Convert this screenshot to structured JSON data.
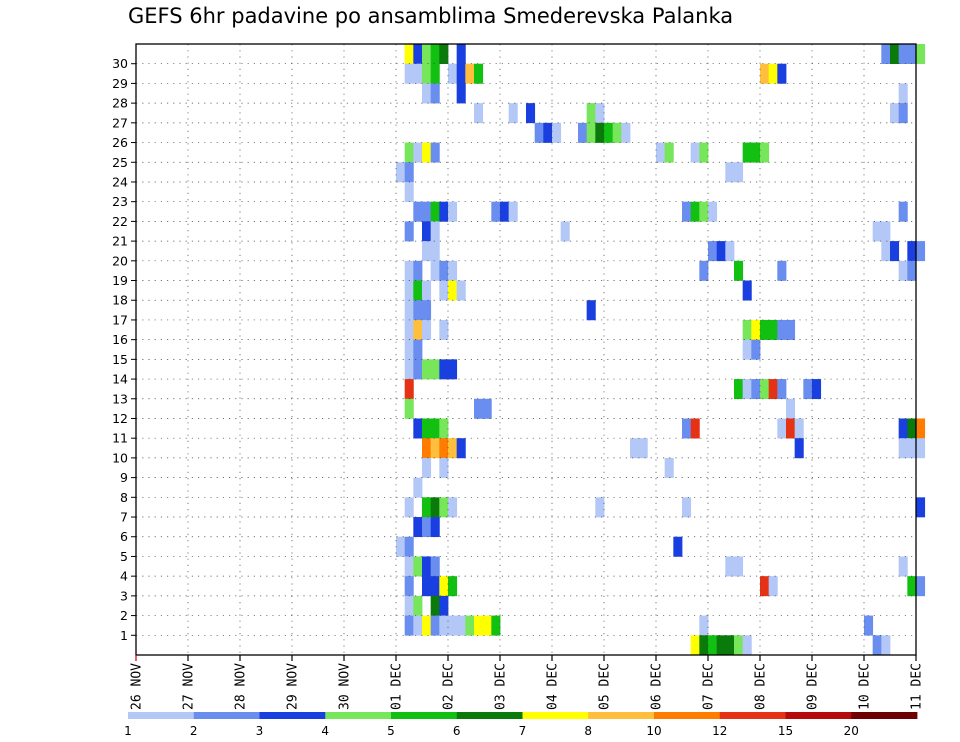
{
  "chart_data": {
    "type": "heatmap",
    "title": "GEFS 6hr padavine po ansamblima Smederevska Palanka",
    "x_ticks": [
      "26 NOV",
      "27 NOV",
      "28 NOV",
      "29 NOV",
      "30 NOV",
      "01 DEC",
      "02 DEC",
      "03 DEC",
      "04 DEC",
      "05 DEC",
      "06 DEC",
      "07 DEC",
      "08 DEC",
      "09 DEC",
      "10 DEC",
      "11 DEC"
    ],
    "y_ticks": [
      "1",
      "2",
      "3",
      "4",
      "5",
      "6",
      "7",
      "8",
      "9",
      "10",
      "11",
      "12",
      "13",
      "14",
      "15",
      "16",
      "17",
      "18",
      "19",
      "20",
      "21",
      "22",
      "23",
      "24",
      "25",
      "26",
      "27",
      "28",
      "29",
      "30"
    ],
    "grid": true,
    "legend": {
      "placement": "bottom",
      "labels": [
        "1",
        "2",
        "3",
        "4",
        "5",
        "6",
        "7",
        "8",
        "10",
        "12",
        "15",
        "20"
      ],
      "colors": [
        "#b4c8f8",
        "#6a8ef0",
        "#1a3fe0",
        "#78e65a",
        "#12c012",
        "#0a7a0a",
        "#ffff00",
        "#ffbe3c",
        "#ff7c00",
        "#e63214",
        "#b40a0a",
        "#6e0000"
      ]
    },
    "cells": [
      {
        "m": 30,
        "c": [
          [
            31,
            6
          ],
          [
            32,
            2
          ],
          [
            33,
            3
          ],
          [
            34,
            4
          ],
          [
            35,
            5
          ],
          [
            37,
            2
          ],
          [
            86,
            1
          ],
          [
            87,
            5
          ],
          [
            88,
            1
          ],
          [
            89,
            1
          ],
          [
            90,
            3
          ]
        ]
      },
      {
        "m": 29,
        "c": [
          [
            31,
            0
          ],
          [
            32,
            0
          ],
          [
            33,
            3
          ],
          [
            34,
            4
          ],
          [
            36,
            0
          ],
          [
            37,
            2
          ],
          [
            38,
            7
          ],
          [
            39,
            4
          ],
          [
            72,
            7
          ],
          [
            73,
            6
          ],
          [
            74,
            2
          ]
        ]
      },
      {
        "m": 28,
        "c": [
          [
            33,
            0
          ],
          [
            34,
            1
          ],
          [
            37,
            2
          ],
          [
            88,
            0
          ]
        ]
      },
      {
        "m": 27,
        "c": [
          [
            39,
            0
          ],
          [
            43,
            0
          ],
          [
            45,
            2
          ],
          [
            52,
            3
          ],
          [
            53,
            0
          ],
          [
            87,
            0
          ],
          [
            88,
            1
          ]
        ]
      },
      {
        "m": 26,
        "c": [
          [
            46,
            1
          ],
          [
            47,
            2
          ],
          [
            48,
            0
          ],
          [
            51,
            1
          ],
          [
            52,
            3
          ],
          [
            53,
            5
          ],
          [
            54,
            4
          ],
          [
            55,
            3
          ],
          [
            56,
            0
          ]
        ]
      },
      {
        "m": 25,
        "c": [
          [
            31,
            3
          ],
          [
            32,
            0
          ],
          [
            33,
            6
          ],
          [
            34,
            1
          ],
          [
            60,
            0
          ],
          [
            61,
            3
          ],
          [
            64,
            0
          ],
          [
            65,
            3
          ],
          [
            70,
            4
          ],
          [
            71,
            4
          ],
          [
            72,
            3
          ]
        ]
      },
      {
        "m": 24,
        "c": [
          [
            30,
            0
          ],
          [
            31,
            1
          ],
          [
            68,
            0
          ],
          [
            69,
            0
          ]
        ]
      },
      {
        "m": 23,
        "c": [
          [
            31,
            0
          ]
        ]
      },
      {
        "m": 22,
        "c": [
          [
            32,
            1
          ],
          [
            33,
            1
          ],
          [
            34,
            4
          ],
          [
            35,
            2
          ],
          [
            36,
            0
          ],
          [
            41,
            1
          ],
          [
            42,
            2
          ],
          [
            43,
            0
          ],
          [
            63,
            1
          ],
          [
            64,
            4
          ],
          [
            65,
            3
          ],
          [
            66,
            0
          ],
          [
            88,
            1
          ]
        ]
      },
      {
        "m": 21,
        "c": [
          [
            31,
            1
          ],
          [
            33,
            2
          ],
          [
            34,
            0
          ],
          [
            49,
            0
          ],
          [
            85,
            0
          ],
          [
            86,
            0
          ]
        ]
      },
      {
        "m": 20,
        "c": [
          [
            33,
            0
          ],
          [
            34,
            0
          ],
          [
            66,
            1
          ],
          [
            67,
            2
          ],
          [
            68,
            0
          ],
          [
            86,
            0
          ],
          [
            87,
            2
          ],
          [
            89,
            2
          ],
          [
            90,
            1
          ]
        ]
      },
      {
        "m": 19,
        "c": [
          [
            31,
            0
          ],
          [
            32,
            1
          ],
          [
            34,
            0
          ],
          [
            35,
            1
          ],
          [
            36,
            0
          ],
          [
            65,
            1
          ],
          [
            69,
            4
          ],
          [
            74,
            1
          ],
          [
            88,
            0
          ],
          [
            89,
            1
          ]
        ]
      },
      {
        "m": 18,
        "c": [
          [
            31,
            0
          ],
          [
            32,
            4
          ],
          [
            33,
            0
          ],
          [
            35,
            0
          ],
          [
            36,
            6
          ],
          [
            37,
            0
          ],
          [
            70,
            2
          ]
        ]
      },
      {
        "m": 17,
        "c": [
          [
            31,
            0
          ],
          [
            32,
            1
          ],
          [
            33,
            1
          ],
          [
            52,
            2
          ]
        ]
      },
      {
        "m": 16,
        "c": [
          [
            31,
            0
          ],
          [
            32,
            7
          ],
          [
            33,
            0
          ],
          [
            35,
            0
          ],
          [
            70,
            3
          ],
          [
            71,
            6
          ],
          [
            72,
            4
          ],
          [
            73,
            4
          ],
          [
            74,
            1
          ],
          [
            75,
            1
          ]
        ]
      },
      {
        "m": 15,
        "c": [
          [
            31,
            0
          ],
          [
            32,
            1
          ],
          [
            70,
            0
          ],
          [
            71,
            1
          ]
        ]
      },
      {
        "m": 14,
        "c": [
          [
            31,
            0
          ],
          [
            32,
            1
          ],
          [
            33,
            3
          ],
          [
            34,
            3
          ],
          [
            35,
            2
          ],
          [
            36,
            2
          ]
        ]
      },
      {
        "m": 13,
        "c": [
          [
            31,
            9
          ],
          [
            69,
            4
          ],
          [
            70,
            0
          ],
          [
            71,
            1
          ],
          [
            72,
            3
          ],
          [
            73,
            9
          ],
          [
            74,
            1
          ],
          [
            77,
            1
          ],
          [
            78,
            2
          ]
        ]
      },
      {
        "m": 12,
        "c": [
          [
            31,
            3
          ],
          [
            39,
            1
          ],
          [
            40,
            1
          ],
          [
            75,
            0
          ]
        ]
      },
      {
        "m": 11,
        "c": [
          [
            32,
            2
          ],
          [
            33,
            4
          ],
          [
            34,
            4
          ],
          [
            35,
            3
          ],
          [
            63,
            1
          ],
          [
            64,
            9
          ],
          [
            74,
            0
          ],
          [
            75,
            9
          ],
          [
            76,
            0
          ],
          [
            88,
            2
          ],
          [
            89,
            5
          ],
          [
            90,
            8
          ]
        ]
      },
      {
        "m": 10,
        "c": [
          [
            33,
            8
          ],
          [
            34,
            7
          ],
          [
            35,
            8
          ],
          [
            36,
            7
          ],
          [
            37,
            2
          ],
          [
            57,
            0
          ],
          [
            58,
            0
          ],
          [
            76,
            2
          ],
          [
            88,
            0
          ],
          [
            89,
            0
          ],
          [
            90,
            0
          ]
        ]
      },
      {
        "m": 9,
        "c": [
          [
            33,
            0
          ],
          [
            35,
            0
          ],
          [
            61,
            0
          ]
        ]
      },
      {
        "m": 8,
        "c": [
          [
            32,
            0
          ]
        ]
      },
      {
        "m": 7,
        "c": [
          [
            31,
            0
          ],
          [
            33,
            4
          ],
          [
            34,
            5
          ],
          [
            35,
            3
          ],
          [
            36,
            0
          ],
          [
            53,
            0
          ],
          [
            63,
            0
          ],
          [
            90,
            2
          ]
        ]
      },
      {
        "m": 6,
        "c": [
          [
            32,
            2
          ],
          [
            33,
            1
          ],
          [
            34,
            2
          ]
        ]
      },
      {
        "m": 5,
        "c": [
          [
            30,
            0
          ],
          [
            31,
            1
          ],
          [
            62,
            2
          ]
        ]
      },
      {
        "m": 4,
        "c": [
          [
            31,
            0
          ],
          [
            32,
            3
          ],
          [
            33,
            2
          ],
          [
            34,
            1
          ],
          [
            68,
            0
          ],
          [
            69,
            0
          ],
          [
            88,
            0
          ]
        ]
      },
      {
        "m": 3,
        "c": [
          [
            31,
            1
          ],
          [
            33,
            2
          ],
          [
            34,
            2
          ],
          [
            35,
            6
          ],
          [
            36,
            4
          ],
          [
            72,
            9
          ],
          [
            73,
            0
          ],
          [
            89,
            4
          ],
          [
            90,
            1
          ]
        ]
      },
      {
        "m": 2,
        "c": [
          [
            31,
            0
          ],
          [
            32,
            3
          ],
          [
            34,
            5
          ],
          [
            35,
            2
          ]
        ]
      },
      {
        "m": 1,
        "c": [
          [
            31,
            1
          ],
          [
            32,
            0
          ],
          [
            33,
            6
          ],
          [
            34,
            1
          ],
          [
            35,
            0
          ],
          [
            36,
            0
          ],
          [
            37,
            0
          ],
          [
            38,
            3
          ],
          [
            39,
            6
          ],
          [
            40,
            6
          ],
          [
            41,
            4
          ],
          [
            65,
            0
          ],
          [
            84,
            1
          ]
        ]
      },
      {
        "m": 0,
        "c": [
          [
            64,
            6
          ],
          [
            65,
            5
          ],
          [
            66,
            4
          ],
          [
            67,
            5
          ],
          [
            68,
            5
          ],
          [
            69,
            3
          ],
          [
            70,
            0
          ],
          [
            85,
            1
          ],
          [
            86,
            0
          ]
        ]
      }
    ]
  }
}
